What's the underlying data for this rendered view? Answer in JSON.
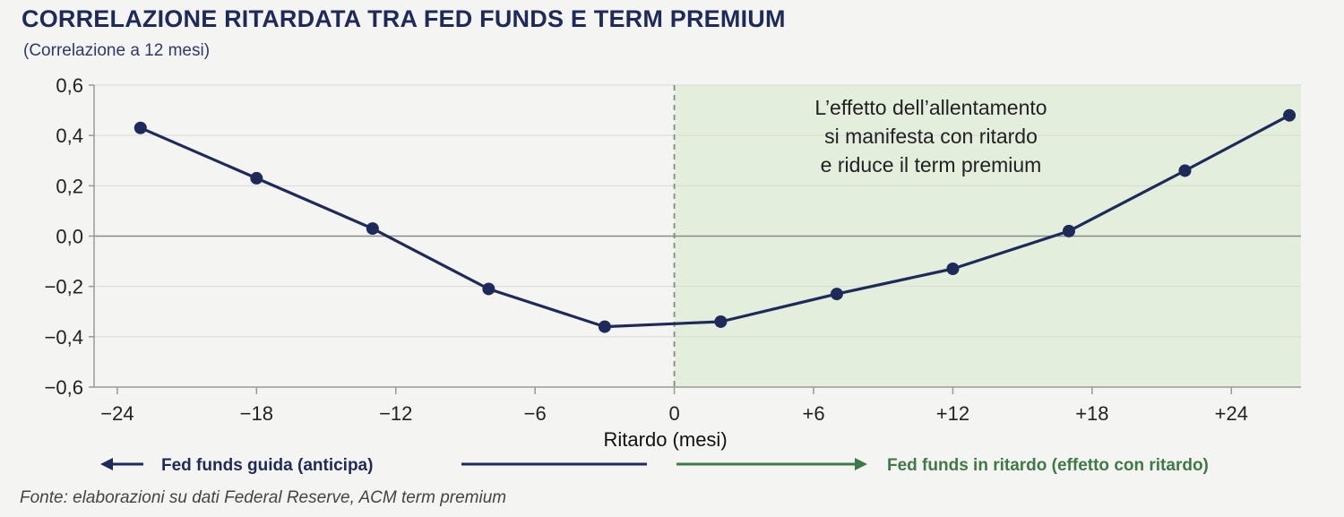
{
  "chart_data": {
    "type": "line",
    "title": "CORRELAZIONE RITARDATA TRA FED FUNDS E TERM PREMIUM",
    "subtitle": "(Correlazione a 12 mesi)",
    "xlabel": "Ritardo (mesi)",
    "ylabel": "",
    "xlim": [
      -25,
      27
    ],
    "ylim": [
      -0.6,
      0.6
    ],
    "x_ticks": [
      -24,
      -18,
      -12,
      -6,
      0,
      6,
      12,
      18,
      24
    ],
    "x_tick_labels": [
      "−24",
      "−18",
      "−12",
      "−6",
      "0",
      "+6",
      "+12",
      "+18",
      "+24"
    ],
    "y_ticks": [
      0.6,
      0.4,
      0.2,
      0.0,
      -0.2,
      -0.4,
      -0.6
    ],
    "y_tick_labels": [
      "0,6",
      "0,4",
      "0,2",
      "0,0",
      "−0,2",
      "−0,4",
      "−0,6"
    ],
    "grid": true,
    "series": [
      {
        "color": "#1e2a5a",
        "points": [
          {
            "x": -23,
            "y": 0.43
          },
          {
            "x": -18,
            "y": 0.23
          },
          {
            "x": -13,
            "y": 0.03
          },
          {
            "x": -8,
            "y": -0.21
          },
          {
            "x": -3,
            "y": -0.36
          },
          {
            "x": 2,
            "y": -0.34
          },
          {
            "x": 7,
            "y": -0.23
          },
          {
            "x": 12,
            "y": -0.13
          },
          {
            "x": 17,
            "y": 0.02
          },
          {
            "x": 22,
            "y": 0.26
          },
          {
            "x": 26.5,
            "y": 0.48
          }
        ]
      }
    ],
    "shaded_region": {
      "x_from": 0,
      "x_to": 27,
      "color": "#e3eedc"
    },
    "annotation": {
      "lines": [
        "L’effetto dell’allentamento",
        "si manifesta con ritardo",
        "e riduce il term premium"
      ]
    },
    "legend": {
      "left": {
        "text": "Fed funds guida (anticipa)",
        "color": "#1e2a5a"
      },
      "right": {
        "text": "Fed funds in ritardo (effetto con ritardo)",
        "color": "#3e7a45"
      }
    },
    "source": "Fonte: elaborazioni su dati Federal Reserve, ACM term premium"
  }
}
